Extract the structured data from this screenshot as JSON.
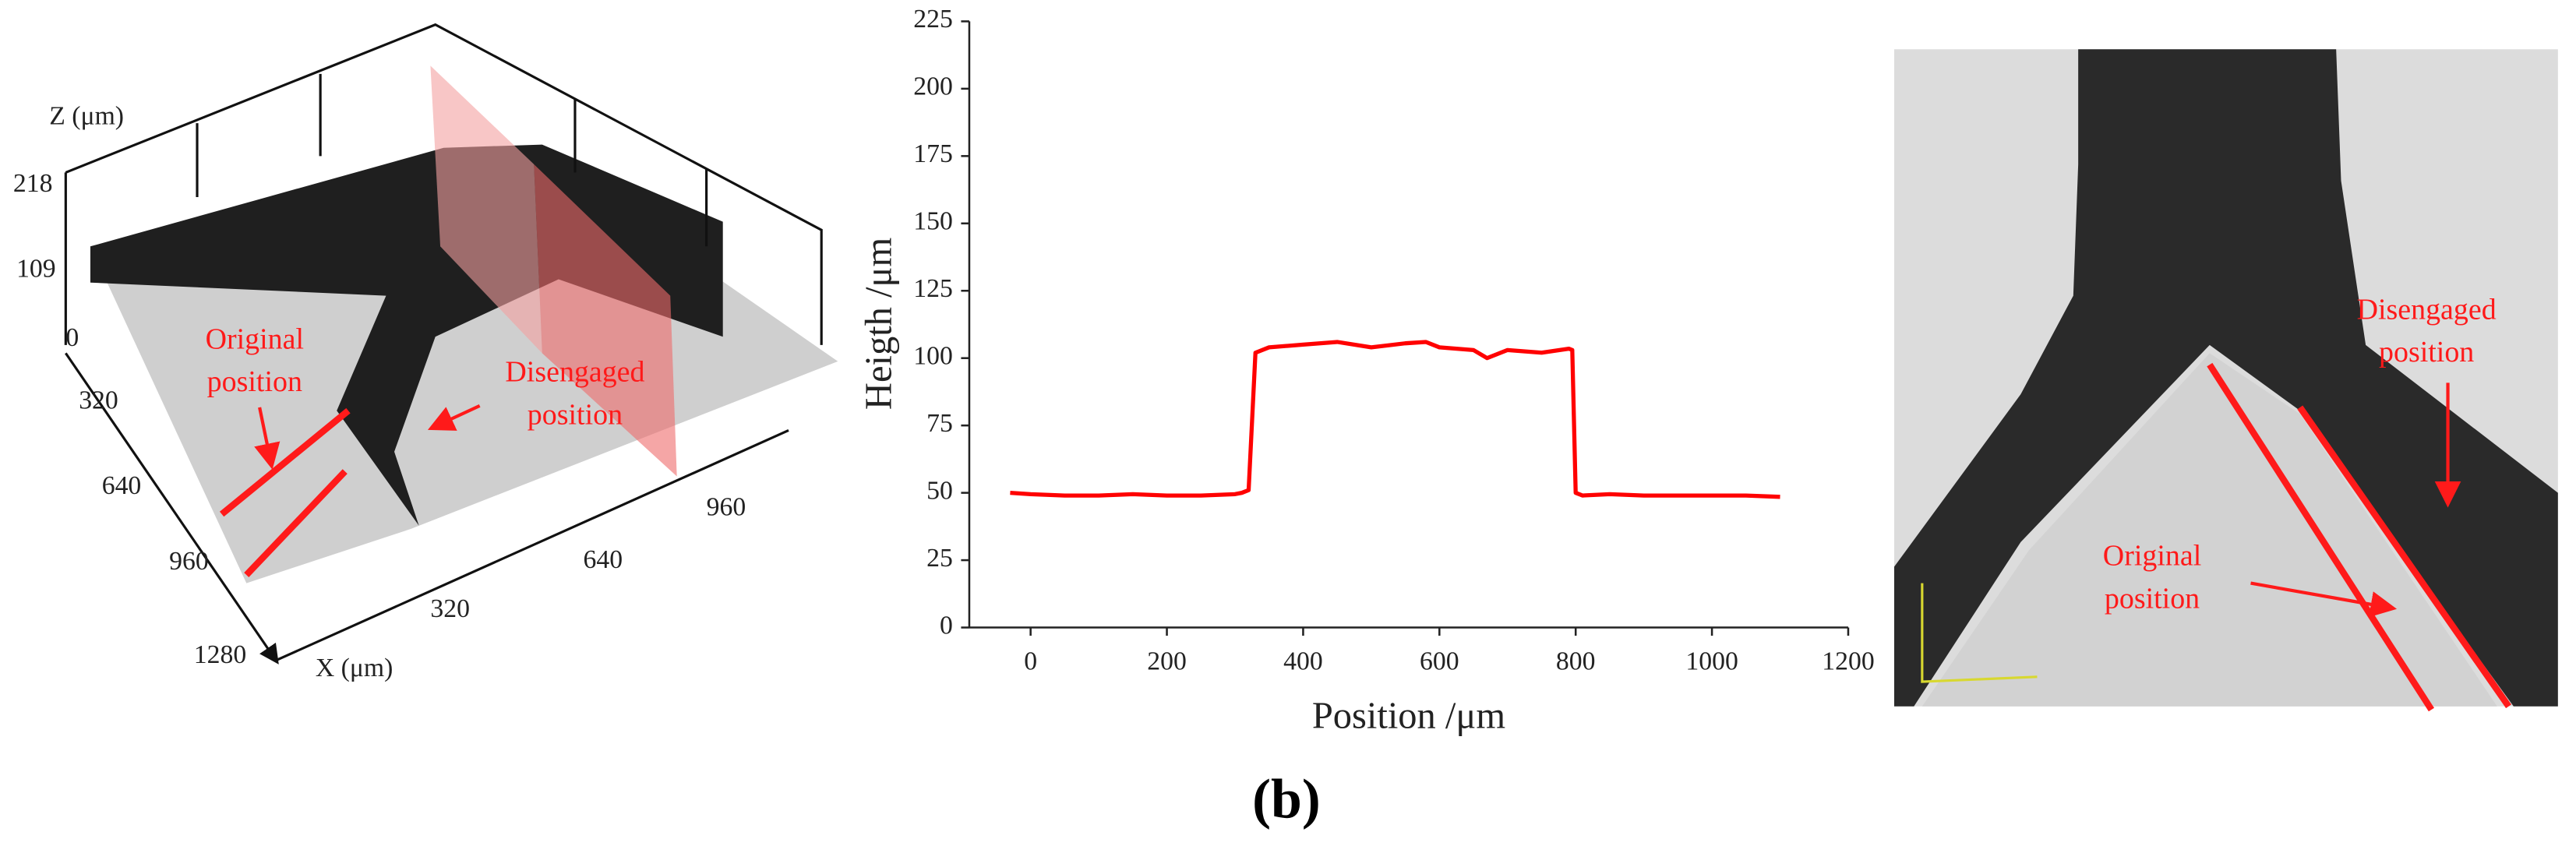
{
  "chart_data": {
    "type": "line",
    "xlabel": "Position /μm",
    "ylabel": "Heigth /μm",
    "x": [
      -30,
      0,
      50,
      100,
      150,
      200,
      250,
      300,
      310,
      320,
      330,
      350,
      400,
      450,
      500,
      550,
      580,
      600,
      650,
      670,
      700,
      750,
      790,
      795,
      800,
      810,
      850,
      900,
      950,
      1000,
      1050,
      1100
    ],
    "series": [
      {
        "color": "#ff0000",
        "values": [
          50,
          49.5,
          49,
          49,
          49.5,
          49,
          49,
          49.5,
          50,
          51,
          102,
          104,
          105,
          106,
          104,
          105.5,
          106,
          104,
          103,
          100,
          103,
          102,
          103.5,
          103,
          50,
          49,
          49.5,
          49,
          49,
          49,
          49,
          48.5
        ]
      }
    ],
    "xlim": [
      -90,
      1200
    ],
    "ylim": [
      0,
      225
    ],
    "xticks": [
      0,
      200,
      400,
      600,
      800,
      1000,
      1200
    ],
    "yticks": [
      0,
      25,
      50,
      75,
      100,
      125,
      150,
      175,
      200,
      225
    ]
  },
  "surface_plot": {
    "z_axis_label": "Z (μm)",
    "x_axis_label": "X (μm)",
    "z_ticks": [
      218,
      109
    ],
    "y_ticks": [
      0,
      320,
      640,
      960,
      1280
    ],
    "x_ticks": [
      320,
      640,
      960
    ],
    "annotations": [
      {
        "lines": [
          "Original",
          "position"
        ]
      },
      {
        "lines": [
          "Disengaged",
          "position"
        ]
      }
    ]
  },
  "micrograph": {
    "annotations": [
      {
        "lines": [
          "Disengaged",
          "position"
        ]
      },
      {
        "lines": [
          "Original",
          "position"
        ]
      }
    ]
  },
  "caption": "(b)"
}
